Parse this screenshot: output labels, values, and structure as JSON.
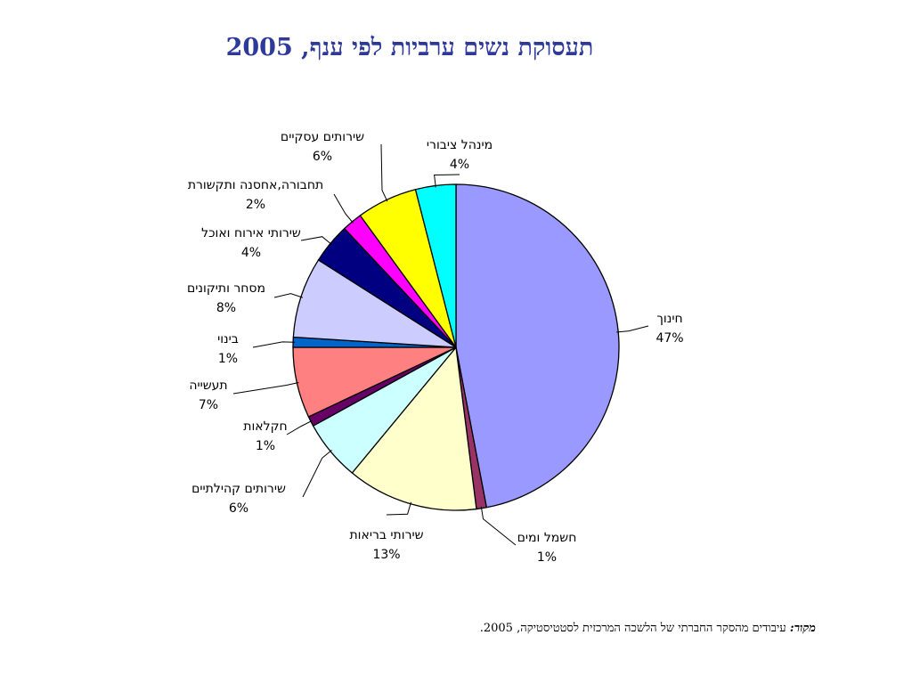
{
  "title": "תעסוקת נשים ערביות לפי ענף, 2005",
  "source": {
    "label": "מקור:",
    "text": " עיבודים מהסקר החברתי של הלשכה המרכזית לסטטיסטיקה, 2005."
  },
  "chart_data": {
    "type": "pie",
    "title": "תעסוקת נשים ערביות לפי ענף, 2005",
    "slices": [
      {
        "label": "חינוך",
        "value": 47,
        "display": "47%",
        "color": "#9999FF"
      },
      {
        "label": "חשמל ומים",
        "value": 1,
        "display": "1%",
        "color": "#993366"
      },
      {
        "label": "שירותי בריאות",
        "value": 13,
        "display": "13%",
        "color": "#FFFFCC"
      },
      {
        "label": "שירותים קהילתיים",
        "value": 6,
        "display": "6%",
        "color": "#CCFFFF"
      },
      {
        "label": "חקלאות",
        "value": 1,
        "display": "1%",
        "color": "#660066"
      },
      {
        "label": "תעשייה",
        "value": 7,
        "display": "7%",
        "color": "#FF8080"
      },
      {
        "label": "בינוי",
        "value": 1,
        "display": "1%",
        "color": "#0066CC"
      },
      {
        "label": "מסחר ותיקונים",
        "value": 8,
        "display": "8%",
        "color": "#CCCCFF"
      },
      {
        "label": "שירותי אירוח ואוכל",
        "value": 4,
        "display": "4%",
        "color": "#000080"
      },
      {
        "label": "תחבורה,אחסנה ותקשורת",
        "value": 2,
        "display": "2%",
        "color": "#FF00FF"
      },
      {
        "label": "שירותים עסקיים",
        "value": 6,
        "display": "6%",
        "color": "#FFFF00"
      },
      {
        "label": "מינהל ציבורי",
        "value": 4,
        "display": "4%",
        "color": "#00FFFF"
      }
    ]
  }
}
